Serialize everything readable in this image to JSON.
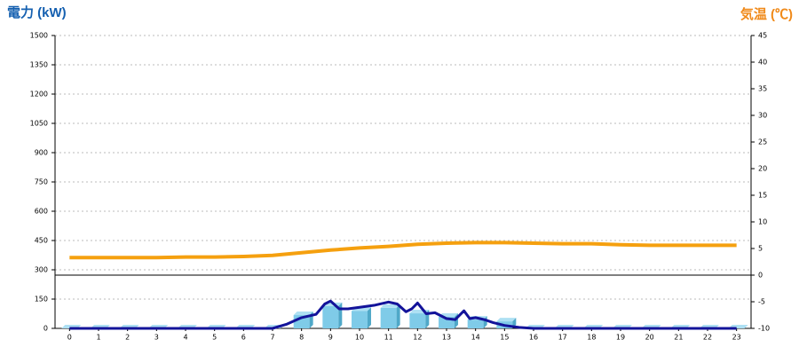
{
  "chart_data": {
    "type": "bar-line",
    "title_left": "電力 (kW)",
    "title_right": "気温 (℃)",
    "categories": [
      "0",
      "1",
      "2",
      "3",
      "4",
      "5",
      "6",
      "7",
      "8",
      "9",
      "10",
      "11",
      "12",
      "13",
      "14",
      "15",
      "16",
      "17",
      "18",
      "19",
      "20",
      "21",
      "22",
      "23"
    ],
    "series": [
      {
        "name": "電力",
        "type": "bar",
        "color": "#7fcbe8",
        "values": [
          0,
          0,
          0,
          0,
          0,
          0,
          0,
          0,
          68,
          114,
          90,
          105,
          77,
          59,
          45,
          36,
          0,
          0,
          0,
          0,
          0,
          0,
          0,
          0
        ]
      },
      {
        "name": "電力",
        "type": "line",
        "color": "#13139a",
        "x": [
          0,
          7,
          7.5,
          8,
          8.5,
          8.8,
          9,
          9.3,
          9.6,
          10,
          10.5,
          11,
          11.3,
          11.6,
          11.8,
          12,
          12.3,
          12.6,
          13,
          13.3,
          13.6,
          13.8,
          14,
          14.3,
          14.6,
          15,
          15.5,
          16,
          23
        ],
        "values": [
          0,
          0,
          22,
          55,
          72,
          125,
          140,
          100,
          100,
          108,
          118,
          135,
          125,
          85,
          100,
          130,
          75,
          80,
          50,
          45,
          90,
          50,
          55,
          45,
          30,
          15,
          5,
          0,
          0
        ]
      },
      {
        "name": "気温",
        "type": "line",
        "axis": "y2",
        "color": "#f5a00f",
        "values": [
          3.3,
          3.3,
          3.3,
          3.3,
          3.4,
          3.4,
          3.5,
          3.7,
          4.2,
          4.7,
          5.1,
          5.4,
          5.8,
          6.0,
          6.1,
          6.1,
          6.0,
          5.9,
          5.9,
          5.7,
          5.6,
          5.6,
          5.6,
          5.6
        ]
      }
    ],
    "ylim": [
      0,
      1500
    ],
    "yticks": [
      0,
      150,
      300,
      450,
      600,
      750,
      900,
      1050,
      1200,
      1350,
      1500
    ],
    "y2lim": [
      -10,
      45
    ],
    "y2ticks": [
      -10,
      -5,
      0,
      5,
      10,
      15,
      20,
      25,
      30,
      35,
      40,
      45
    ],
    "grid": true
  }
}
